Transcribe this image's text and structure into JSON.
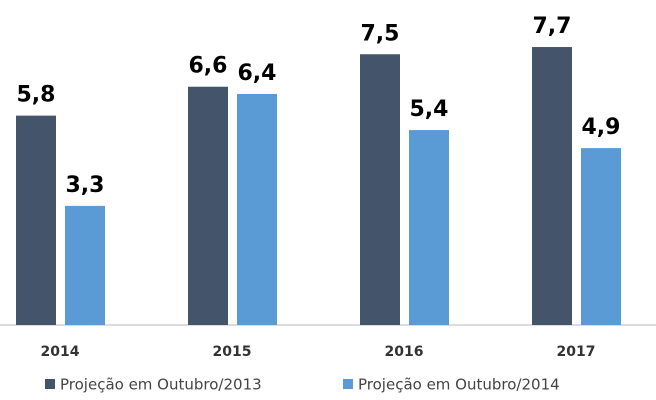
{
  "chart_data": {
    "type": "bar",
    "categories": [
      "2014",
      "2015",
      "2016",
      "2017"
    ],
    "series": [
      {
        "name": "Projeção em Outubro/2013",
        "color": "#44546a",
        "values": [
          5.8,
          6.6,
          7.5,
          7.7
        ],
        "value_labels": [
          "5,8",
          "6,6",
          "7,5",
          "7,7"
        ]
      },
      {
        "name": "Projeção em Outubro/2014",
        "color": "#5b9bd5",
        "values": [
          3.3,
          6.4,
          5.4,
          4.9
        ],
        "value_labels": [
          "3,3",
          "6,4",
          "5,4",
          "4,9"
        ]
      }
    ],
    "legend": "bottom"
  }
}
